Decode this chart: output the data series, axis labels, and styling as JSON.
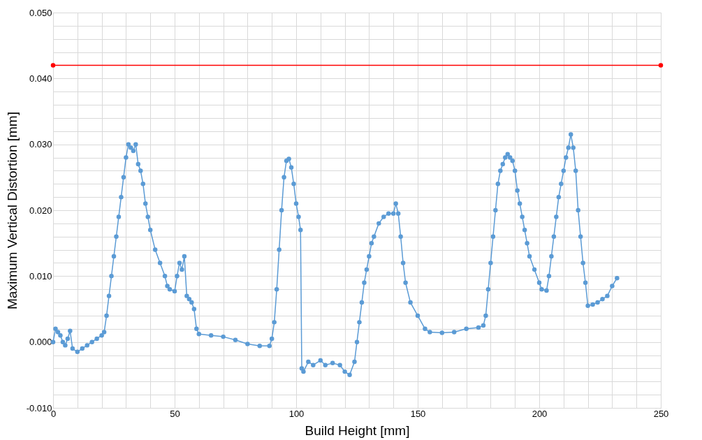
{
  "chart_data": {
    "type": "line",
    "xlabel": "Build Height [mm]",
    "ylabel": "Maximum Vertical Distortion [mm]",
    "xlim": [
      0,
      250
    ],
    "ylim": [
      -0.01,
      0.05
    ],
    "xticks": [
      0,
      {
        "value": 10,
        "label": null
      },
      {
        "value": 20,
        "label": null
      },
      {
        "value": 30,
        "label": null
      },
      {
        "value": 40,
        "label": null
      },
      50,
      {
        "value": 60,
        "label": null
      },
      {
        "value": 70,
        "label": null
      },
      {
        "value": 80,
        "label": null
      },
      {
        "value": 90,
        "label": null
      },
      100,
      {
        "value": 110,
        "label": null
      },
      {
        "value": 120,
        "label": null
      },
      {
        "value": 130,
        "label": null
      },
      {
        "value": 140,
        "label": null
      },
      150,
      {
        "value": 160,
        "label": null
      },
      {
        "value": 170,
        "label": null
      },
      {
        "value": 180,
        "label": null
      },
      {
        "value": 190,
        "label": null
      },
      200,
      {
        "value": 210,
        "label": null
      },
      {
        "value": 220,
        "label": null
      },
      {
        "value": 230,
        "label": null
      },
      {
        "value": 240,
        "label": null
      },
      250
    ],
    "yticks": [
      {
        "value": -0.01,
        "label": "-0.010"
      },
      {
        "value": -0.008,
        "label": null
      },
      {
        "value": -0.006,
        "label": null
      },
      {
        "value": -0.004,
        "label": null
      },
      {
        "value": -0.002,
        "label": null
      },
      {
        "value": 0,
        "label": "0.000"
      },
      {
        "value": 0.002,
        "label": null
      },
      {
        "value": 0.004,
        "label": null
      },
      {
        "value": 0.006,
        "label": null
      },
      {
        "value": 0.008,
        "label": null
      },
      {
        "value": 0.01,
        "label": "0.010"
      },
      {
        "value": 0.012,
        "label": null
      },
      {
        "value": 0.014,
        "label": null
      },
      {
        "value": 0.016,
        "label": null
      },
      {
        "value": 0.018,
        "label": null
      },
      {
        "value": 0.02,
        "label": "0.020"
      },
      {
        "value": 0.022,
        "label": null
      },
      {
        "value": 0.024,
        "label": null
      },
      {
        "value": 0.026,
        "label": null
      },
      {
        "value": 0.028,
        "label": null
      },
      {
        "value": 0.03,
        "label": "0.030"
      },
      {
        "value": 0.032,
        "label": null
      },
      {
        "value": 0.034,
        "label": null
      },
      {
        "value": 0.036,
        "label": null
      },
      {
        "value": 0.038,
        "label": null
      },
      {
        "value": 0.04,
        "label": "0.040"
      },
      {
        "value": 0.042,
        "label": null
      },
      {
        "value": 0.044,
        "label": null
      },
      {
        "value": 0.046,
        "label": null
      },
      {
        "value": 0.048,
        "label": null
      },
      {
        "value": 0.05,
        "label": "0.050"
      }
    ],
    "grid": true,
    "marker": "circle",
    "line_style": "solid",
    "series": [
      {
        "color": "#5b9bd5",
        "x": [
          0,
          1,
          2,
          3,
          4,
          5,
          6,
          7,
          8,
          10,
          12,
          14,
          16,
          18,
          20,
          21,
          22,
          23,
          24,
          25,
          26,
          27,
          28,
          29,
          30,
          31,
          32,
          33,
          34,
          35,
          36,
          37,
          38,
          39,
          40,
          42,
          44,
          46,
          47,
          48,
          50,
          51,
          52,
          53,
          54,
          55,
          56,
          57,
          58,
          59,
          60,
          65,
          70,
          75,
          80,
          85,
          89,
          90,
          91,
          92,
          93,
          94,
          95,
          96,
          97,
          98,
          99,
          100,
          101,
          101.8,
          102.3,
          103,
          105,
          107,
          110,
          112,
          115,
          118,
          120,
          122,
          124,
          125,
          126,
          127,
          128,
          129,
          130,
          131,
          132,
          134,
          136,
          138,
          140,
          141,
          142,
          143,
          144,
          145,
          147,
          150,
          153,
          155,
          160,
          165,
          170,
          175,
          177,
          178,
          179,
          180,
          181,
          182,
          183,
          184,
          185,
          186,
          187,
          188,
          189,
          190,
          191,
          192,
          193,
          194,
          195,
          196,
          198,
          200,
          201,
          203,
          204,
          205,
          206,
          207,
          208,
          209,
          210,
          211,
          212,
          213,
          214,
          215,
          216,
          217,
          218,
          219,
          220,
          222,
          224,
          226,
          228,
          230,
          232
        ],
        "values": [
          0.0,
          0.002,
          0.0015,
          0.001,
          0.0,
          -0.0005,
          0.0005,
          0.0017,
          -0.001,
          -0.0015,
          -0.001,
          -0.0005,
          0.0,
          0.0005,
          0.001,
          0.0015,
          0.004,
          0.007,
          0.01,
          0.013,
          0.016,
          0.019,
          0.022,
          0.025,
          0.028,
          0.03,
          0.0295,
          0.029,
          0.03,
          0.027,
          0.026,
          0.024,
          0.021,
          0.019,
          0.017,
          0.014,
          0.012,
          0.01,
          0.0085,
          0.008,
          0.0077,
          0.01,
          0.012,
          0.011,
          0.013,
          0.007,
          0.0065,
          0.006,
          0.005,
          0.002,
          0.0012,
          0.001,
          0.0008,
          0.0003,
          -0.0003,
          -0.0006,
          -0.0006,
          0.0005,
          0.003,
          0.008,
          0.014,
          0.02,
          0.025,
          0.0275,
          0.0278,
          0.0265,
          0.024,
          0.021,
          0.019,
          0.017,
          -0.004,
          -0.0045,
          -0.003,
          -0.0035,
          -0.0028,
          -0.0035,
          -0.0032,
          -0.0035,
          -0.0045,
          -0.005,
          -0.003,
          0.0,
          0.003,
          0.006,
          0.009,
          0.011,
          0.013,
          0.015,
          0.016,
          0.018,
          0.019,
          0.0195,
          0.0195,
          0.021,
          0.0195,
          0.016,
          0.012,
          0.009,
          0.006,
          0.004,
          0.002,
          0.0015,
          0.0014,
          0.0015,
          0.002,
          0.0022,
          0.0025,
          0.004,
          0.008,
          0.012,
          0.016,
          0.02,
          0.024,
          0.026,
          0.027,
          0.028,
          0.0285,
          0.028,
          0.0275,
          0.026,
          0.023,
          0.021,
          0.019,
          0.017,
          0.015,
          0.013,
          0.011,
          0.009,
          0.008,
          0.0078,
          0.01,
          0.013,
          0.016,
          0.019,
          0.022,
          0.024,
          0.026,
          0.028,
          0.0295,
          0.0315,
          0.0295,
          0.026,
          0.02,
          0.016,
          0.012,
          0.009,
          0.0055,
          0.0057,
          0.006,
          0.0065,
          0.007,
          0.0085,
          0.0097
        ]
      },
      {
        "color": "#ff0000",
        "x": [
          0,
          250
        ],
        "values": [
          0.042,
          0.042
        ]
      }
    ]
  }
}
